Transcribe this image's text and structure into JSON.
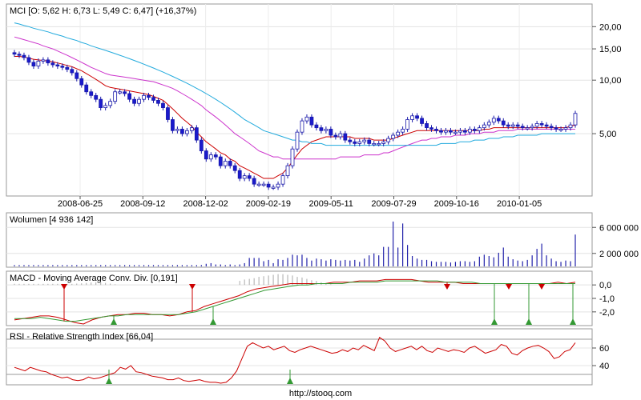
{
  "chart_data": [
    {
      "type": "candlestick",
      "panel": "price",
      "title": "MCI [O: 5,62  H: 6,73  L: 5,49  C: 6,47] (+16,37%)",
      "scale": "log",
      "y_ticks": [
        "20,00",
        "15,00",
        "10,00",
        "5,00"
      ],
      "y_tick_values": [
        20,
        15,
        10,
        5
      ],
      "ylim": [
        2.3,
        26
      ],
      "x_ticks": [
        "2008-06-25",
        "2008-09-12",
        "2008-12-02",
        "2009-02-19",
        "2009-05-11",
        "2009-07-29",
        "2009-10-16",
        "2010-01-05"
      ],
      "close": [
        14.0,
        13.8,
        13.4,
        12.6,
        12.0,
        12.8,
        13.0,
        12.5,
        12.2,
        12.0,
        11.8,
        11.5,
        11.0,
        10.2,
        9.4,
        8.6,
        8.2,
        7.8,
        7.0,
        7.2,
        7.6,
        8.6,
        8.6,
        8.4,
        7.8,
        7.4,
        7.8,
        8.2,
        8.0,
        7.7,
        7.4,
        7.0,
        6.0,
        5.2,
        5.3,
        5.0,
        5.2,
        5.4,
        4.6,
        4.0,
        3.6,
        3.8,
        3.7,
        3.3,
        3.5,
        3.3,
        3.1,
        2.8,
        2.9,
        2.8,
        2.6,
        2.6,
        2.6,
        2.5,
        2.5,
        2.6,
        2.9,
        3.3,
        4.1,
        5.1,
        5.9,
        6.2,
        5.6,
        5.4,
        5.2,
        5.3,
        4.9,
        4.8,
        5.0,
        4.6,
        4.5,
        4.4,
        4.5,
        4.6,
        4.4,
        4.4,
        4.4,
        4.5,
        4.7,
        4.9,
        5.1,
        5.3,
        6.0,
        6.3,
        6.1,
        5.7,
        5.4,
        5.3,
        5.2,
        5.1,
        5.2,
        5.1,
        5.1,
        5.2,
        5.1,
        5.3,
        5.2,
        5.4,
        5.6,
        5.8,
        6.1,
        5.9,
        5.6,
        5.5,
        5.6,
        5.5,
        5.4,
        5.4,
        5.5,
        5.7,
        5.6,
        5.5,
        5.4,
        5.3,
        5.3,
        5.4,
        5.6,
        6.5
      ],
      "ma_series": [
        {
          "color": "#cc0000",
          "values": [
            13.6,
            13.6,
            13.5,
            13.3,
            13.1,
            13.0,
            12.9,
            12.8,
            12.7,
            12.5,
            12.3,
            12.1,
            11.9,
            11.6,
            11.3,
            10.9,
            10.5,
            10.1,
            9.7,
            9.3,
            9.1,
            9.0,
            8.9,
            8.8,
            8.7,
            8.6,
            8.5,
            8.4,
            8.3,
            8.1,
            7.9,
            7.7,
            7.3,
            6.9,
            6.5,
            6.1,
            5.8,
            5.5,
            5.1,
            4.8,
            4.5,
            4.3,
            4.1,
            3.9,
            3.8,
            3.6,
            3.5,
            3.3,
            3.2,
            3.1,
            3.0,
            2.9,
            2.8,
            2.8,
            2.8,
            2.9,
            3.0,
            3.2,
            3.5,
            3.8,
            4.1,
            4.3,
            4.5,
            4.6,
            4.7,
            4.8,
            4.8,
            4.8,
            4.8,
            4.8,
            4.8,
            4.7,
            4.7,
            4.7,
            4.7,
            4.6,
            4.6,
            4.6,
            4.6,
            4.7,
            4.8,
            4.9,
            5.0,
            5.1,
            5.2,
            5.2,
            5.2,
            5.2,
            5.2,
            5.2,
            5.2,
            5.2,
            5.2,
            5.2,
            5.2,
            5.2,
            5.2,
            5.2,
            5.3,
            5.3,
            5.4,
            5.4,
            5.4,
            5.4,
            5.4,
            5.4,
            5.4,
            5.4,
            5.4,
            5.4,
            5.4,
            5.4,
            5.4,
            5.4,
            5.4,
            5.4,
            5.5,
            5.6
          ]
        },
        {
          "color": "#cc33cc",
          "values": [
            17.5,
            17.2,
            16.9,
            16.6,
            16.3,
            16.0,
            15.6,
            15.3,
            15.0,
            14.6,
            14.2,
            13.8,
            13.4,
            13.0,
            12.6,
            12.2,
            11.8,
            11.5,
            11.2,
            10.9,
            10.7,
            10.6,
            10.5,
            10.4,
            10.3,
            10.2,
            10.1,
            10.0,
            9.9,
            9.8,
            9.6,
            9.4,
            9.2,
            9.0,
            8.7,
            8.4,
            8.1,
            7.8,
            7.5,
            7.2,
            6.8,
            6.5,
            6.2,
            5.9,
            5.6,
            5.3,
            5.0,
            4.8,
            4.6,
            4.4,
            4.2,
            4.0,
            3.9,
            3.8,
            3.7,
            3.7,
            3.6,
            3.6,
            3.6,
            3.6,
            3.6,
            3.6,
            3.6,
            3.6,
            3.6,
            3.6,
            3.6,
            3.6,
            3.7,
            3.7,
            3.7,
            3.7,
            3.7,
            3.8,
            3.8,
            3.8,
            3.8,
            3.9,
            3.9,
            4.0,
            4.1,
            4.2,
            4.3,
            4.4,
            4.5,
            4.6,
            4.6,
            4.7,
            4.7,
            4.8,
            4.8,
            4.8,
            4.9,
            4.9,
            4.9,
            5.0,
            5.0,
            5.0,
            5.1,
            5.1,
            5.1,
            5.2,
            5.2,
            5.2,
            5.2,
            5.3,
            5.3,
            5.3,
            5.3,
            5.3,
            5.3,
            5.3,
            5.3,
            5.3,
            5.3,
            5.3,
            5.3,
            5.3
          ]
        },
        {
          "color": "#22aadd",
          "values": [
            21.0,
            20.7,
            20.3,
            20.0,
            19.6,
            19.3,
            19.0,
            18.7,
            18.3,
            18.0,
            17.7,
            17.3,
            17.0,
            16.7,
            16.3,
            16.0,
            15.6,
            15.3,
            15.0,
            14.7,
            14.4,
            14.1,
            13.8,
            13.5,
            13.2,
            12.9,
            12.6,
            12.3,
            12.0,
            11.7,
            11.4,
            11.1,
            10.8,
            10.5,
            10.2,
            9.9,
            9.6,
            9.3,
            9.0,
            8.7,
            8.4,
            8.1,
            7.8,
            7.5,
            7.2,
            6.9,
            6.6,
            6.3,
            6.0,
            5.8,
            5.6,
            5.4,
            5.2,
            5.1,
            5.0,
            4.9,
            4.8,
            4.7,
            4.6,
            4.6,
            4.5,
            4.5,
            4.4,
            4.4,
            4.4,
            4.3,
            4.3,
            4.3,
            4.3,
            4.3,
            4.3,
            4.3,
            4.3,
            4.3,
            4.3,
            4.3,
            4.3,
            4.3,
            4.3,
            4.3,
            4.3,
            4.3,
            4.3,
            4.3,
            4.3,
            4.3,
            4.3,
            4.3,
            4.3,
            4.4,
            4.4,
            4.4,
            4.4,
            4.5,
            4.5,
            4.5,
            4.6,
            4.6,
            4.6,
            4.7,
            4.7,
            4.7,
            4.8,
            4.8,
            4.8,
            4.9,
            4.9,
            4.9,
            4.9,
            4.9,
            5.0,
            5.0,
            5.0,
            5.0,
            5.0,
            5.0,
            5.0,
            5.0
          ]
        }
      ]
    },
    {
      "type": "bar",
      "panel": "volume",
      "title": "Wolumen [4 936 142]",
      "y_ticks": [
        "6 000 000",
        "2 000 000"
      ],
      "y_tick_values": [
        6000000,
        2000000
      ],
      "ylim": [
        0,
        8000000
      ],
      "values": [
        200000,
        200000,
        200000,
        200000,
        200000,
        200000,
        200000,
        200000,
        200000,
        200000,
        200000,
        200000,
        200000,
        200000,
        200000,
        200000,
        200000,
        200000,
        200000,
        200000,
        200000,
        200000,
        200000,
        200000,
        200000,
        200000,
        200000,
        200000,
        200000,
        200000,
        200000,
        200000,
        200000,
        200000,
        200000,
        200000,
        200000,
        200000,
        200000,
        200000,
        400000,
        500000,
        300000,
        300000,
        200000,
        300000,
        200000,
        300000,
        500000,
        1300000,
        1300000,
        1300000,
        800000,
        1000000,
        500000,
        1100000,
        1000000,
        1300000,
        1800000,
        1700000,
        1800000,
        1300000,
        900000,
        1200000,
        1100000,
        900000,
        1100000,
        1000000,
        900000,
        1000000,
        900000,
        1000000,
        700000,
        1200000,
        1700000,
        2000000,
        1700000,
        3000000,
        3000000,
        6900000,
        2900000,
        6600000,
        3300000,
        1600000,
        1200000,
        1000000,
        1000000,
        800000,
        700000,
        700000,
        700000,
        600000,
        700000,
        800000,
        800000,
        700000,
        800000,
        1500000,
        1800000,
        1600000,
        1400000,
        2100000,
        2900000,
        1500000,
        1100000,
        900000,
        800000,
        1000000,
        1700000,
        2700000,
        3500000,
        1700000,
        1200000,
        800000,
        700000,
        900000,
        800000,
        4900000
      ]
    },
    {
      "type": "line",
      "panel": "macd",
      "title": "MACD - Moving Average Conv. Div. [0,191]",
      "y_ticks": [
        "0,0",
        "-1,0",
        "-2,0"
      ],
      "y_tick_values": [
        0,
        -1,
        -2
      ],
      "ylim": [
        -2.9,
        0.9
      ],
      "series": [
        {
          "color": "#cc0000",
          "values": [
            -2.6,
            -2.5,
            -2.4,
            -2.3,
            -2.3,
            -2.4,
            -2.6,
            -2.8,
            -2.9,
            -2.6,
            -2.4,
            -2.3,
            -2.2,
            -2.2,
            -2.1,
            -2.1,
            -2.2,
            -2.2,
            -2.3,
            -2.2,
            -2.0,
            -1.9,
            -1.6,
            -1.4,
            -1.2,
            -1.0,
            -0.8,
            -0.5,
            -0.3,
            -0.2,
            -0.1,
            0.0,
            0.1,
            0.1,
            0.1,
            0.1,
            0.1,
            0.2,
            0.2,
            0.2,
            0.3,
            0.3,
            0.3,
            0.4,
            0.4,
            0.4,
            0.4,
            0.3,
            0.2,
            0.2,
            0.2,
            0.2,
            0.1,
            0.1,
            0.1,
            0.1,
            0.1,
            0.1,
            0.1,
            0.1,
            0.1,
            0.1,
            0.1,
            0.2,
            0.1,
            0.2
          ]
        },
        {
          "color": "#339933",
          "values": [
            -2.5,
            -2.5,
            -2.5,
            -2.4,
            -2.5,
            -2.6,
            -2.7,
            -2.7,
            -2.6,
            -2.5,
            -2.4,
            -2.3,
            -2.3,
            -2.2,
            -2.2,
            -2.2,
            -2.2,
            -2.2,
            -2.2,
            -2.2,
            -2.1,
            -2.0,
            -1.8,
            -1.6,
            -1.4,
            -1.2,
            -1.0,
            -0.8,
            -0.6,
            -0.4,
            -0.3,
            -0.2,
            -0.1,
            0.0,
            0.0,
            0.1,
            0.1,
            0.1,
            0.1,
            0.2,
            0.2,
            0.2,
            0.2,
            0.3,
            0.3,
            0.3,
            0.3,
            0.3,
            0.3,
            0.3,
            0.2,
            0.2,
            0.2,
            0.2,
            0.1,
            0.1,
            0.1,
            0.1,
            0.1,
            0.1,
            0.1,
            0.1,
            0.1,
            0.1,
            0.1,
            0.1
          ]
        }
      ],
      "histogram": [
        0.08,
        0.08,
        0.08,
        0.08,
        0.08,
        0.08,
        0.08,
        0.08,
        0.08,
        0.08,
        0.08,
        0.08,
        0.08,
        0.1,
        0.12,
        0.15,
        0.18,
        0.2,
        0.2,
        0.15,
        0.1,
        0.05,
        0.0,
        0.0,
        0.0,
        0.0,
        0.0,
        0.0,
        0.0,
        0.0,
        0.0,
        0.0,
        0.0,
        0.0,
        0.0,
        0.0,
        0.0,
        0.0,
        0.0,
        0.0,
        0.0,
        0.0,
        0.0,
        0.0,
        0.0,
        0.0,
        0.0,
        0.3,
        0.4,
        0.45,
        0.5,
        0.6,
        0.65,
        0.7,
        0.75,
        0.8,
        0.8,
        0.75,
        0.7,
        0.6,
        0.55,
        0.45,
        0.35,
        0.3,
        0.2,
        0.1,
        0.05,
        0.0,
        0.0,
        0.0,
        0.0,
        0.0,
        0.0,
        0.0,
        0.0,
        0.0,
        0.0,
        0.0,
        0.0,
        0.0,
        0.0,
        0.0,
        0.0,
        0.0,
        0.0,
        0.0,
        0.0,
        0.0,
        0.0,
        0.0,
        0.0,
        0.0,
        0.0,
        0.0,
        0.0,
        0.0,
        0.0,
        0.0,
        0.0,
        0.0,
        0.0,
        0.0,
        0.0,
        0.0,
        0.0,
        0.0,
        0.0,
        0.0,
        0.0,
        0.0,
        0.0,
        0.0,
        0.0,
        0.0,
        0.0,
        0.0,
        0.0,
        0.0
      ]
    },
    {
      "type": "line",
      "panel": "rsi",
      "title": "RSI - Relative Strength Index [66,04]",
      "y_ticks": [
        "60",
        "40"
      ],
      "y_tick_values": [
        60,
        40
      ],
      "ylim": [
        20,
        80
      ],
      "reference_lines": [
        70,
        30
      ],
      "series": [
        {
          "color": "#cc0000",
          "values": [
            38,
            36,
            34,
            38,
            36,
            34,
            33,
            30,
            28,
            26,
            27,
            24,
            23,
            24,
            27,
            25,
            26,
            28,
            30,
            32,
            38,
            36,
            40,
            33,
            32,
            30,
            28,
            27,
            26,
            24,
            24,
            26,
            23,
            22,
            23,
            24,
            22,
            21,
            21,
            20,
            21,
            26,
            34,
            48,
            62,
            66,
            63,
            60,
            62,
            58,
            60,
            62,
            57,
            55,
            58,
            60,
            62,
            60,
            58,
            56,
            54,
            55,
            58,
            56,
            60,
            58,
            63,
            60,
            57,
            72,
            68,
            60,
            56,
            58,
            60,
            62,
            58,
            62,
            57,
            55,
            60,
            58,
            56,
            58,
            57,
            55,
            60,
            62,
            58,
            54,
            56,
            58,
            64,
            62,
            54,
            52,
            57,
            60,
            62,
            63,
            60,
            56,
            48,
            50,
            56,
            58,
            66
          ]
        }
      ]
    }
  ],
  "markers": {
    "macd_down": [
      80,
      240,
      558,
      635,
      676
    ],
    "macd_up": [
      142,
      266,
      617,
      660,
      715
    ],
    "rsi_up": [
      136,
      362
    ]
  },
  "footer": "http://stooq.com"
}
